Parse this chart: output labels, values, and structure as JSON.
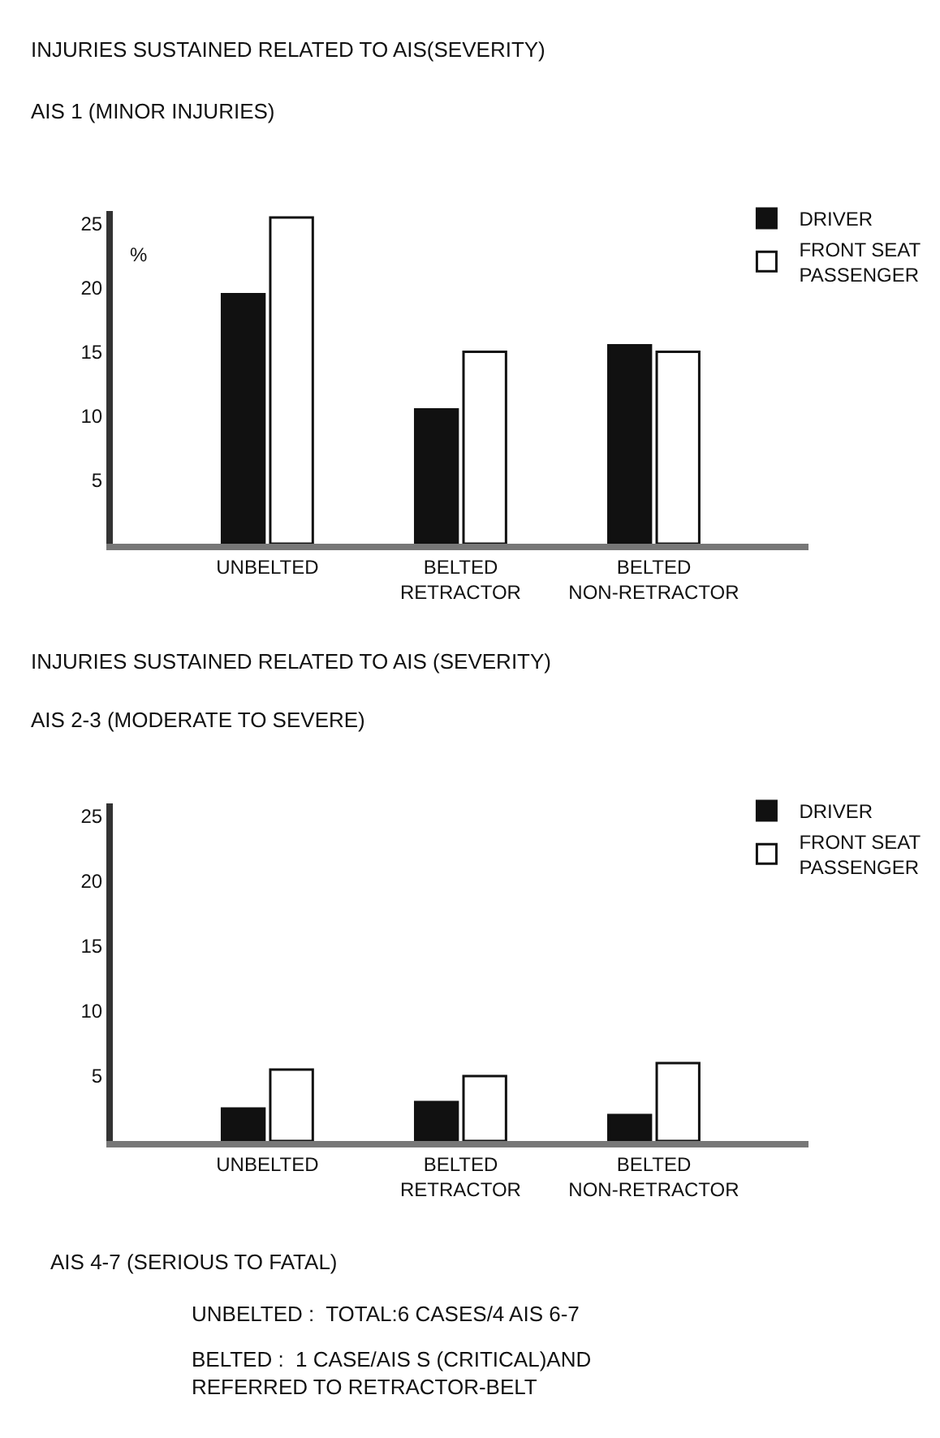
{
  "chart_data": [
    {
      "type": "bar",
      "title": "INJURIES SUSTAINED RELATED TO AIS(SEVERITY)",
      "subtitle": "AIS 1 (MINOR INJURIES)",
      "ylabel": "%",
      "categories": [
        "UNBELTED",
        "BELTED\nRETRACTOR",
        "BELTED\nNON-RETRACTOR"
      ],
      "series": [
        {
          "name": "DRIVER",
          "color": "#111111",
          "values": [
            19.5,
            10.5,
            15.5
          ]
        },
        {
          "name": "FRONT SEAT\nPASSENGER",
          "color": "#ffffff",
          "values": [
            25.5,
            15,
            15
          ]
        }
      ],
      "ylim": [
        0,
        26
      ],
      "yticks": [
        5,
        10,
        15,
        20,
        25
      ],
      "legend": "top right"
    },
    {
      "type": "bar",
      "title": "INJURIES SUSTAINED RELATED TO AIS (SEVERITY)",
      "subtitle": "AIS 2-3 (MODERATE TO SEVERE)",
      "categories": [
        "UNBELTED",
        "BELTED\nRETRACTOR",
        "BELTED\nNON-RETRACTOR"
      ],
      "series": [
        {
          "name": "DRIVER",
          "color": "#111111",
          "values": [
            2.5,
            3,
            2
          ]
        },
        {
          "name": "FRONT SEAT\nPASSENGER",
          "color": "#ffffff",
          "values": [
            5.5,
            5,
            6
          ]
        }
      ],
      "ylim": [
        0,
        26
      ],
      "yticks": [
        5,
        10,
        15,
        20,
        25
      ],
      "legend": "top right",
      "annotations": [
        "AIS 4-7 (SERIOUS TO FATAL)",
        "UNBELTED :  TOTAL:6 CASES/4 AIS 6-7",
        "BELTED :  1 CASE/AIS S (CRITICAL)AND\nREFERRED TO RETRACTOR-BELT"
      ]
    }
  ]
}
